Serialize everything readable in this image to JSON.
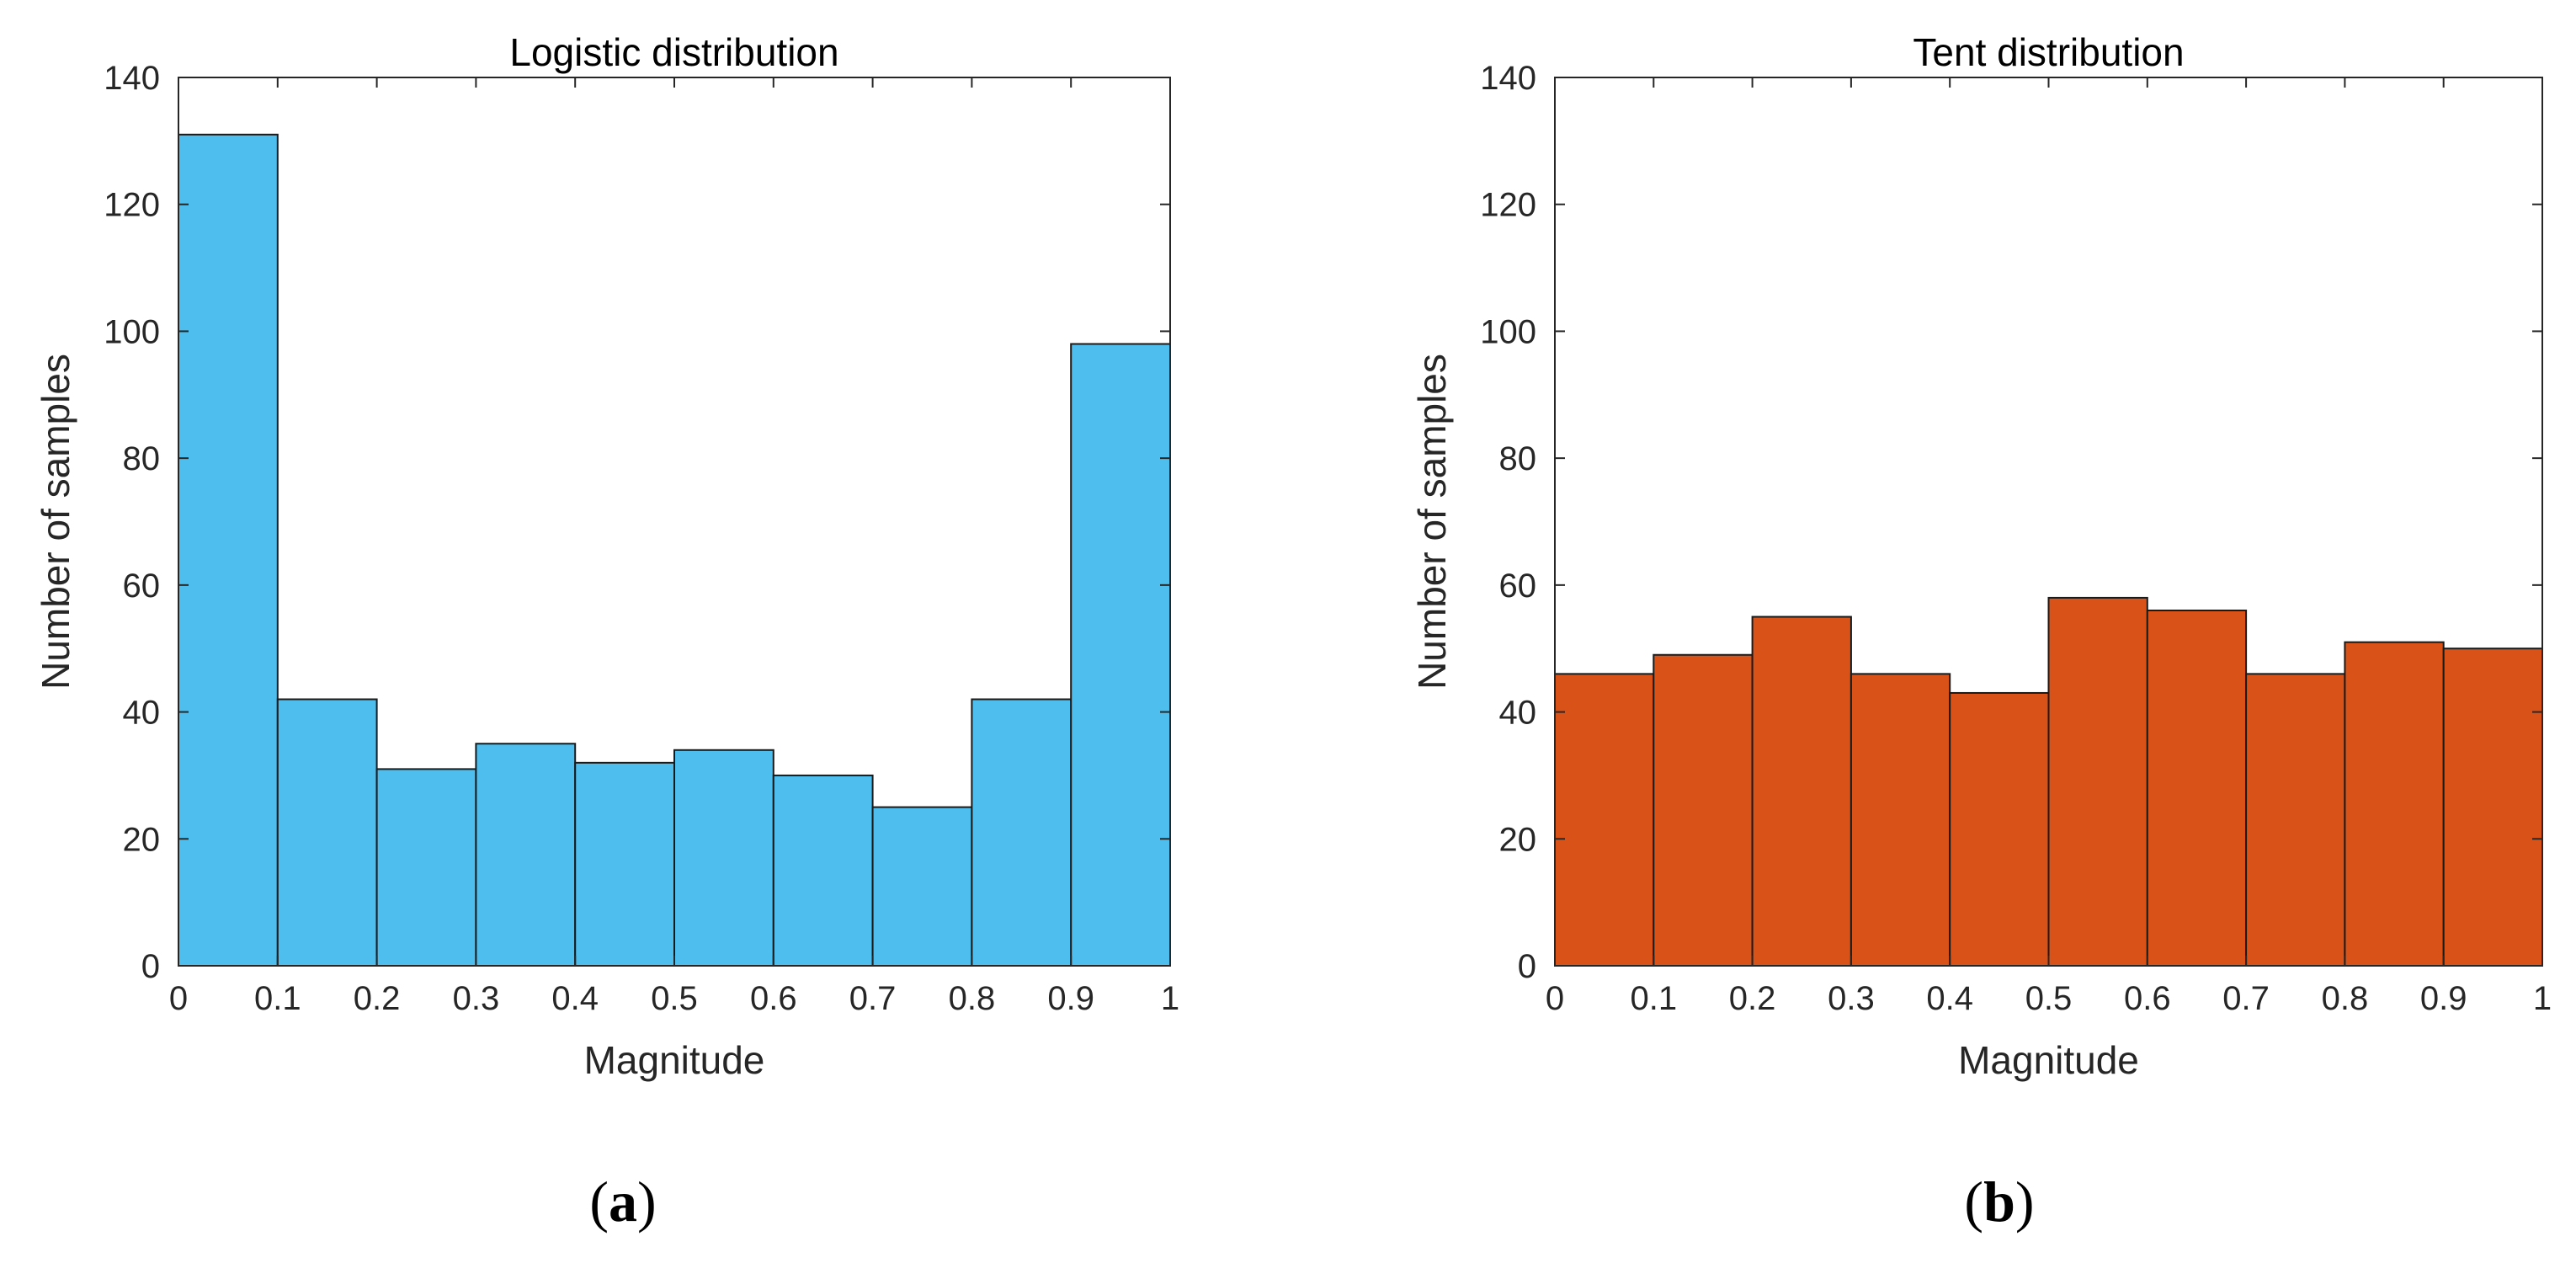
{
  "chart_data": [
    {
      "type": "bar",
      "title": "Logistic distribution",
      "xlabel": "Magnitude",
      "ylabel": "Number of samples",
      "bin_edges": [
        0,
        0.1,
        0.2,
        0.3,
        0.4,
        0.5,
        0.6,
        0.7,
        0.8,
        0.9,
        1
      ],
      "values": [
        131,
        42,
        31,
        35,
        32,
        34,
        30,
        25,
        42,
        98
      ],
      "xlim": [
        0,
        1
      ],
      "ylim": [
        0,
        140
      ],
      "xticks": [
        "0",
        "0.1",
        "0.2",
        "0.3",
        "0.4",
        "0.5",
        "0.6",
        "0.7",
        "0.8",
        "0.9",
        "1"
      ],
      "yticks": [
        "0",
        "20",
        "40",
        "60",
        "80",
        "100",
        "120",
        "140"
      ],
      "color": "#4DBEEE",
      "grid": false,
      "caption_letter": "a",
      "caption_open": "(",
      "caption_close": ")"
    },
    {
      "type": "bar",
      "title": "Tent distribution",
      "xlabel": "Magnitude",
      "ylabel": "Number of samples",
      "bin_edges": [
        0,
        0.1,
        0.2,
        0.3,
        0.4,
        0.5,
        0.6,
        0.7,
        0.8,
        0.9,
        1
      ],
      "values": [
        46,
        49,
        55,
        46,
        43,
        58,
        56,
        46,
        51,
        50
      ],
      "xlim": [
        0,
        1
      ],
      "ylim": [
        0,
        140
      ],
      "xticks": [
        "0",
        "0.1",
        "0.2",
        "0.3",
        "0.4",
        "0.5",
        "0.6",
        "0.7",
        "0.8",
        "0.9",
        "1"
      ],
      "yticks": [
        "0",
        "20",
        "40",
        "60",
        "80",
        "100",
        "120",
        "140"
      ],
      "color": "#D95319",
      "grid": false,
      "caption_letter": "b",
      "caption_open": "(",
      "caption_close": ")"
    }
  ]
}
